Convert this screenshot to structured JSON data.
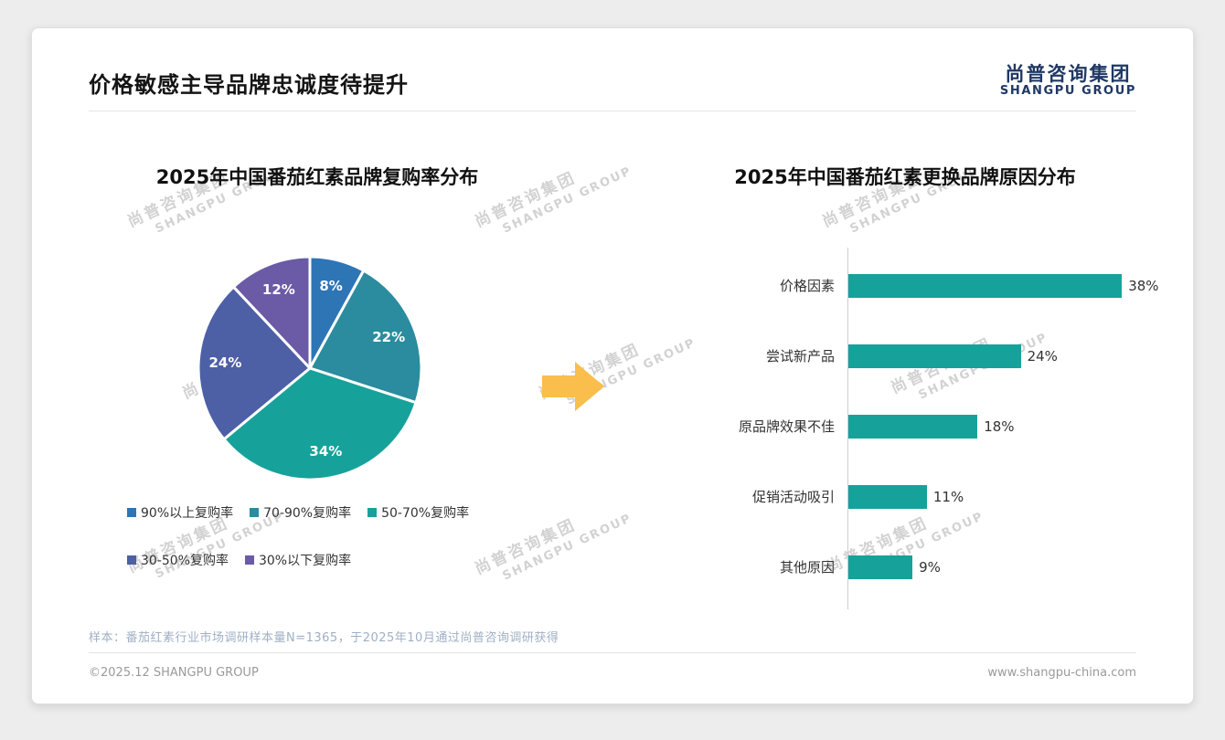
{
  "page": {
    "title": "价格敏感主导品牌忠诚度待提升",
    "logo": {
      "cn": "尚普咨询集团",
      "en": "SHANGPU GROUP"
    },
    "watermark": {
      "cn": "尚普咨询集团",
      "en": "SHANGPU GROUP"
    },
    "footnote": "样本：番茄红素行业市场调研样本量N=1365，于2025年10月通过尚普咨询调研获得",
    "footer": {
      "copyright": "©2025.12 SHANGPU GROUP",
      "website": "www.shangpu-china.com"
    }
  },
  "arrow": {
    "color": "#F9BE4B"
  },
  "colors": {
    "logo_navy": "#1F3864",
    "bar_teal": "#16A29A",
    "watermark_gray": "#D2D2D2"
  },
  "chart_data": [
    {
      "type": "pie",
      "title": "2025年中国番茄红素品牌复购率分布",
      "labels": [
        "90%以上复购率",
        "70-90%复购率",
        "50-70%复购率",
        "30-50%复购率",
        "30%以下复购率"
      ],
      "values": [
        8,
        22,
        34,
        24,
        12
      ],
      "unit": "%",
      "data_labels": [
        "8%",
        "22%",
        "34%",
        "24%",
        "12%"
      ],
      "colors": [
        "#2E75B6",
        "#2A8C9E",
        "#16A29A",
        "#4D5FA5",
        "#6B5AA6"
      ],
      "start_angle_deg": 0,
      "direction": "clockwise",
      "legend_position": "bottom",
      "legend_rows": [
        3,
        2
      ]
    },
    {
      "type": "bar",
      "orientation": "horizontal",
      "title": "2025年中国番茄红素更换品牌原因分布",
      "categories": [
        "价格因素",
        "尝试新产品",
        "原品牌效果不佳",
        "促销活动吸引",
        "其他原因"
      ],
      "values": [
        38,
        24,
        18,
        11,
        9
      ],
      "unit": "%",
      "bar_color": "#16A29A",
      "xlim": [
        0,
        40
      ],
      "grid": false
    }
  ]
}
